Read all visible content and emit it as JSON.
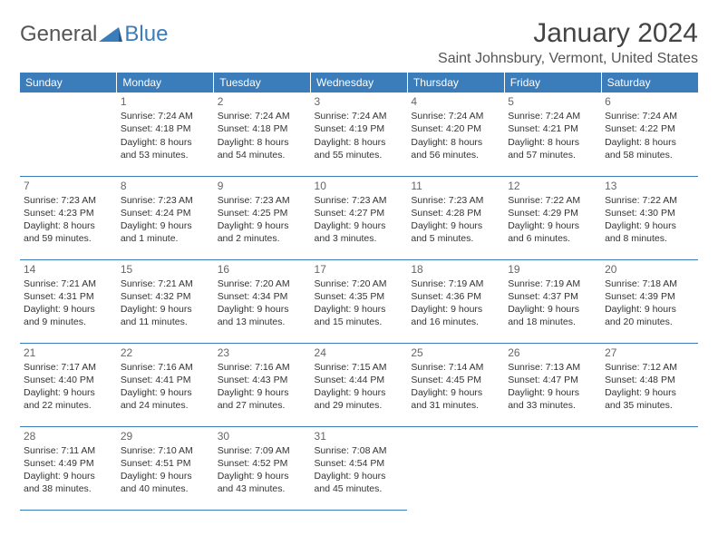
{
  "logo": {
    "textA": "General",
    "textB": "Blue"
  },
  "title": "January 2024",
  "location": "Saint Johnsbury, Vermont, United States",
  "colors": {
    "header_bg": "#3b7cba",
    "header_text": "#ffffff",
    "border": "#3b7cba",
    "text": "#333333",
    "daynum": "#666666"
  },
  "dayHeaders": [
    "Sunday",
    "Monday",
    "Tuesday",
    "Wednesday",
    "Thursday",
    "Friday",
    "Saturday"
  ],
  "weeks": [
    [
      null,
      {
        "n": "1",
        "sr": "Sunrise: 7:24 AM",
        "ss": "Sunset: 4:18 PM",
        "d1": "Daylight: 8 hours",
        "d2": "and 53 minutes."
      },
      {
        "n": "2",
        "sr": "Sunrise: 7:24 AM",
        "ss": "Sunset: 4:18 PM",
        "d1": "Daylight: 8 hours",
        "d2": "and 54 minutes."
      },
      {
        "n": "3",
        "sr": "Sunrise: 7:24 AM",
        "ss": "Sunset: 4:19 PM",
        "d1": "Daylight: 8 hours",
        "d2": "and 55 minutes."
      },
      {
        "n": "4",
        "sr": "Sunrise: 7:24 AM",
        "ss": "Sunset: 4:20 PM",
        "d1": "Daylight: 8 hours",
        "d2": "and 56 minutes."
      },
      {
        "n": "5",
        "sr": "Sunrise: 7:24 AM",
        "ss": "Sunset: 4:21 PM",
        "d1": "Daylight: 8 hours",
        "d2": "and 57 minutes."
      },
      {
        "n": "6",
        "sr": "Sunrise: 7:24 AM",
        "ss": "Sunset: 4:22 PM",
        "d1": "Daylight: 8 hours",
        "d2": "and 58 minutes."
      }
    ],
    [
      {
        "n": "7",
        "sr": "Sunrise: 7:23 AM",
        "ss": "Sunset: 4:23 PM",
        "d1": "Daylight: 8 hours",
        "d2": "and 59 minutes."
      },
      {
        "n": "8",
        "sr": "Sunrise: 7:23 AM",
        "ss": "Sunset: 4:24 PM",
        "d1": "Daylight: 9 hours",
        "d2": "and 1 minute."
      },
      {
        "n": "9",
        "sr": "Sunrise: 7:23 AM",
        "ss": "Sunset: 4:25 PM",
        "d1": "Daylight: 9 hours",
        "d2": "and 2 minutes."
      },
      {
        "n": "10",
        "sr": "Sunrise: 7:23 AM",
        "ss": "Sunset: 4:27 PM",
        "d1": "Daylight: 9 hours",
        "d2": "and 3 minutes."
      },
      {
        "n": "11",
        "sr": "Sunrise: 7:23 AM",
        "ss": "Sunset: 4:28 PM",
        "d1": "Daylight: 9 hours",
        "d2": "and 5 minutes."
      },
      {
        "n": "12",
        "sr": "Sunrise: 7:22 AM",
        "ss": "Sunset: 4:29 PM",
        "d1": "Daylight: 9 hours",
        "d2": "and 6 minutes."
      },
      {
        "n": "13",
        "sr": "Sunrise: 7:22 AM",
        "ss": "Sunset: 4:30 PM",
        "d1": "Daylight: 9 hours",
        "d2": "and 8 minutes."
      }
    ],
    [
      {
        "n": "14",
        "sr": "Sunrise: 7:21 AM",
        "ss": "Sunset: 4:31 PM",
        "d1": "Daylight: 9 hours",
        "d2": "and 9 minutes."
      },
      {
        "n": "15",
        "sr": "Sunrise: 7:21 AM",
        "ss": "Sunset: 4:32 PM",
        "d1": "Daylight: 9 hours",
        "d2": "and 11 minutes."
      },
      {
        "n": "16",
        "sr": "Sunrise: 7:20 AM",
        "ss": "Sunset: 4:34 PM",
        "d1": "Daylight: 9 hours",
        "d2": "and 13 minutes."
      },
      {
        "n": "17",
        "sr": "Sunrise: 7:20 AM",
        "ss": "Sunset: 4:35 PM",
        "d1": "Daylight: 9 hours",
        "d2": "and 15 minutes."
      },
      {
        "n": "18",
        "sr": "Sunrise: 7:19 AM",
        "ss": "Sunset: 4:36 PM",
        "d1": "Daylight: 9 hours",
        "d2": "and 16 minutes."
      },
      {
        "n": "19",
        "sr": "Sunrise: 7:19 AM",
        "ss": "Sunset: 4:37 PM",
        "d1": "Daylight: 9 hours",
        "d2": "and 18 minutes."
      },
      {
        "n": "20",
        "sr": "Sunrise: 7:18 AM",
        "ss": "Sunset: 4:39 PM",
        "d1": "Daylight: 9 hours",
        "d2": "and 20 minutes."
      }
    ],
    [
      {
        "n": "21",
        "sr": "Sunrise: 7:17 AM",
        "ss": "Sunset: 4:40 PM",
        "d1": "Daylight: 9 hours",
        "d2": "and 22 minutes."
      },
      {
        "n": "22",
        "sr": "Sunrise: 7:16 AM",
        "ss": "Sunset: 4:41 PM",
        "d1": "Daylight: 9 hours",
        "d2": "and 24 minutes."
      },
      {
        "n": "23",
        "sr": "Sunrise: 7:16 AM",
        "ss": "Sunset: 4:43 PM",
        "d1": "Daylight: 9 hours",
        "d2": "and 27 minutes."
      },
      {
        "n": "24",
        "sr": "Sunrise: 7:15 AM",
        "ss": "Sunset: 4:44 PM",
        "d1": "Daylight: 9 hours",
        "d2": "and 29 minutes."
      },
      {
        "n": "25",
        "sr": "Sunrise: 7:14 AM",
        "ss": "Sunset: 4:45 PM",
        "d1": "Daylight: 9 hours",
        "d2": "and 31 minutes."
      },
      {
        "n": "26",
        "sr": "Sunrise: 7:13 AM",
        "ss": "Sunset: 4:47 PM",
        "d1": "Daylight: 9 hours",
        "d2": "and 33 minutes."
      },
      {
        "n": "27",
        "sr": "Sunrise: 7:12 AM",
        "ss": "Sunset: 4:48 PM",
        "d1": "Daylight: 9 hours",
        "d2": "and 35 minutes."
      }
    ],
    [
      {
        "n": "28",
        "sr": "Sunrise: 7:11 AM",
        "ss": "Sunset: 4:49 PM",
        "d1": "Daylight: 9 hours",
        "d2": "and 38 minutes."
      },
      {
        "n": "29",
        "sr": "Sunrise: 7:10 AM",
        "ss": "Sunset: 4:51 PM",
        "d1": "Daylight: 9 hours",
        "d2": "and 40 minutes."
      },
      {
        "n": "30",
        "sr": "Sunrise: 7:09 AM",
        "ss": "Sunset: 4:52 PM",
        "d1": "Daylight: 9 hours",
        "d2": "and 43 minutes."
      },
      {
        "n": "31",
        "sr": "Sunrise: 7:08 AM",
        "ss": "Sunset: 4:54 PM",
        "d1": "Daylight: 9 hours",
        "d2": "and 45 minutes."
      },
      null,
      null,
      null
    ]
  ]
}
